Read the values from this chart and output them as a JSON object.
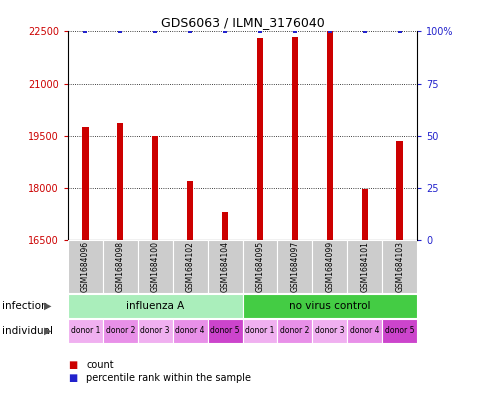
{
  "title": "GDS6063 / ILMN_3176040",
  "samples": [
    "GSM1684096",
    "GSM1684098",
    "GSM1684100",
    "GSM1684102",
    "GSM1684104",
    "GSM1684095",
    "GSM1684097",
    "GSM1684099",
    "GSM1684101",
    "GSM1684103"
  ],
  "counts": [
    19750,
    19850,
    19500,
    18200,
    17300,
    22300,
    22350,
    22500,
    17950,
    19350
  ],
  "percentiles": [
    100,
    100,
    100,
    100,
    100,
    100,
    100,
    100,
    100,
    100
  ],
  "ylim_left": [
    16500,
    22500
  ],
  "yticks_left": [
    16500,
    18000,
    19500,
    21000,
    22500
  ],
  "ylim_right": [
    0,
    100
  ],
  "yticks_right": [
    0,
    25,
    50,
    75,
    100
  ],
  "ytick_labels_right": [
    "0",
    "25",
    "50",
    "75",
    "100%"
  ],
  "bar_color": "#cc0000",
  "dot_color": "#2222cc",
  "bar_width": 0.18,
  "infection_groups": [
    {
      "label": "influenza A",
      "start": 0,
      "end": 5,
      "color": "#aaeebb"
    },
    {
      "label": "no virus control",
      "start": 5,
      "end": 10,
      "color": "#44cc44"
    }
  ],
  "individual_labels": [
    "donor 1",
    "donor 2",
    "donor 3",
    "donor 4",
    "donor 5",
    "donor 1",
    "donor 2",
    "donor 3",
    "donor 4",
    "donor 5"
  ],
  "individual_colors": [
    "#f0b0f0",
    "#e890e8",
    "#f0b0f0",
    "#e890e8",
    "#cc44cc",
    "#f0b0f0",
    "#e890e8",
    "#f0b0f0",
    "#e890e8",
    "#cc44cc"
  ],
  "legend_items": [
    {
      "label": "count",
      "color": "#cc0000"
    },
    {
      "label": "percentile rank within the sample",
      "color": "#2222cc"
    }
  ],
  "infection_row_label": "infection",
  "individual_row_label": "individual",
  "axis_label_color_left": "#cc0000",
  "axis_label_color_right": "#2222cc",
  "bg_gray": "#cccccc",
  "title_fontsize": 9
}
